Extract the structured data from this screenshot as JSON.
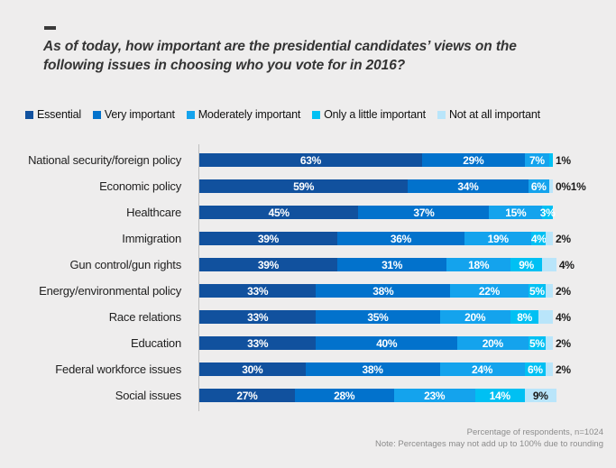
{
  "title": {
    "dash": "",
    "text": "As of today, how important are the presidential candidates’ views on the following issues in choosing who you vote for in 2016?"
  },
  "chart_data": {
    "type": "bar",
    "orientation": "horizontal",
    "stacked": true,
    "unit": "%",
    "xlim": [
      0,
      100
    ],
    "legend_position": "top",
    "grid": false,
    "series_names": [
      "Essential",
      "Very important",
      "Moderately important",
      "Only a little important",
      "Not at all important"
    ],
    "series_colors": [
      "#11519e",
      "#0272cc",
      "#14a3ed",
      "#00c0f3",
      "#b9e5fa"
    ],
    "categories": [
      "National security/foreign policy",
      "Economic policy",
      "Healthcare",
      "Immigration",
      "Gun control/gun rights",
      "Energy/environmental policy",
      "Race relations",
      "Education",
      "Federal workforce issues",
      "Social issues"
    ],
    "rows": [
      {
        "category": "National security/foreign policy",
        "values": [
          63,
          29,
          7,
          1,
          0
        ],
        "labels": [
          "63%",
          "29%",
          "7%",
          "1%",
          ""
        ]
      },
      {
        "category": "Economic policy",
        "values": [
          59,
          34,
          6,
          0,
          1
        ],
        "labels": [
          "59%",
          "34%",
          "6%",
          "0%",
          "1%"
        ]
      },
      {
        "category": "Healthcare",
        "values": [
          45,
          37,
          15,
          3,
          0
        ],
        "labels": [
          "45%",
          "37%",
          "15%",
          "3%",
          ""
        ]
      },
      {
        "category": "Immigration",
        "values": [
          39,
          36,
          19,
          4,
          2
        ],
        "labels": [
          "39%",
          "36%",
          "19%",
          "4%",
          "2%"
        ]
      },
      {
        "category": "Gun control/gun rights",
        "values": [
          39,
          31,
          18,
          9,
          4
        ],
        "labels": [
          "39%",
          "31%",
          "18%",
          "9%",
          "4%"
        ]
      },
      {
        "category": "Energy/environmental policy",
        "values": [
          33,
          38,
          22,
          5,
          2
        ],
        "labels": [
          "33%",
          "38%",
          "22%",
          "5%",
          "2%"
        ]
      },
      {
        "category": "Race relations",
        "values": [
          33,
          35,
          20,
          8,
          4
        ],
        "labels": [
          "33%",
          "35%",
          "20%",
          "8%",
          "4%"
        ]
      },
      {
        "category": "Education",
        "values": [
          33,
          40,
          20,
          5,
          2
        ],
        "labels": [
          "33%",
          "40%",
          "20%",
          "5%",
          "2%"
        ]
      },
      {
        "category": "Federal workforce issues",
        "values": [
          30,
          38,
          24,
          6,
          2
        ],
        "labels": [
          "30%",
          "38%",
          "24%",
          "6%",
          "2%"
        ]
      },
      {
        "category": "Social issues",
        "values": [
          27,
          28,
          23,
          14,
          9
        ],
        "labels": [
          "27%",
          "28%",
          "23%",
          "14%",
          "9%"
        ]
      }
    ]
  },
  "footer": {
    "line1": "Percentage of respondents, n=1024",
    "line2": "Note: Percentages may not add up to 100% due to rounding"
  }
}
